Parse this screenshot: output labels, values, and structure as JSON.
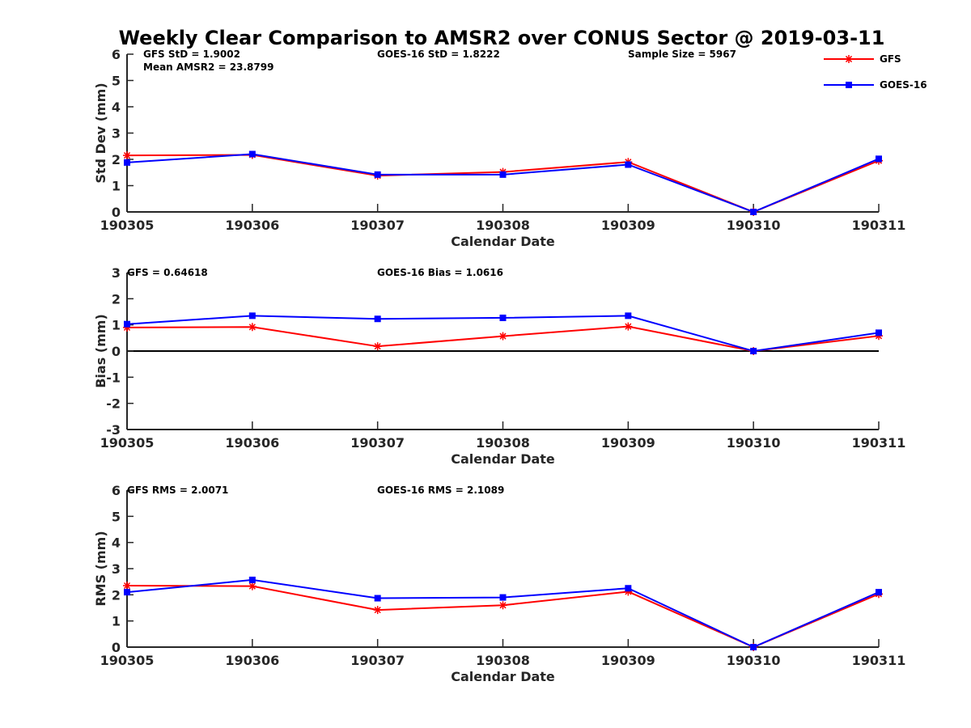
{
  "title": "Weekly Clear Comparison to AMSR2 over CONUS Sector @ 2019-03-11",
  "legend": {
    "placement": "top-right",
    "items": [
      {
        "name": "GFS",
        "color": "#ff0000",
        "marker": "asterisk"
      },
      {
        "name": "GOES-16",
        "color": "#0000ff",
        "marker": "square"
      }
    ]
  },
  "chart_data": [
    {
      "type": "line",
      "categories": [
        "190305",
        "190306",
        "190307",
        "190308",
        "190309",
        "190310",
        "190311"
      ],
      "xlabel": "Calendar Date",
      "ylabel": "Std Dev (mm)",
      "ylim": [
        0,
        6
      ],
      "yticks": [
        "0",
        "1",
        "2",
        "3",
        "4",
        "5",
        "6"
      ],
      "zero_line": false,
      "grid": false,
      "series": [
        {
          "name": "GFS",
          "color": "#ff0000",
          "marker": "asterisk",
          "values": [
            2.15,
            2.17,
            1.38,
            1.52,
            1.9,
            0.0,
            1.95
          ]
        },
        {
          "name": "GOES-16",
          "color": "#0000ff",
          "marker": "square",
          "values": [
            1.88,
            2.2,
            1.42,
            1.42,
            1.8,
            0.0,
            2.02
          ]
        }
      ],
      "annotations": [
        {
          "text": "GFS StD = 1.9002"
        },
        {
          "text": "Mean AMSR2 = 23.8799"
        },
        {
          "text": "GOES-16 StD = 1.8222"
        },
        {
          "text": "Sample Size = 5967"
        }
      ]
    },
    {
      "type": "line",
      "categories": [
        "190305",
        "190306",
        "190307",
        "190308",
        "190309",
        "190310",
        "190311"
      ],
      "xlabel": "Calendar Date",
      "ylabel": "Bias (mm)",
      "ylim": [
        -3,
        3
      ],
      "yticks": [
        "-3",
        "-2",
        "-1",
        "0",
        "1",
        "2",
        "3"
      ],
      "zero_line": true,
      "grid": false,
      "series": [
        {
          "name": "GFS",
          "color": "#ff0000",
          "marker": "asterisk",
          "values": [
            0.9,
            0.92,
            0.18,
            0.57,
            0.94,
            0.0,
            0.58
          ]
        },
        {
          "name": "GOES-16",
          "color": "#0000ff",
          "marker": "square",
          "values": [
            1.03,
            1.35,
            1.23,
            1.27,
            1.35,
            0.0,
            0.7
          ]
        }
      ],
      "annotations": [
        {
          "text": "GFS = 0.64618"
        },
        {
          "text": "GOES-16 Bias  = 1.0616"
        }
      ]
    },
    {
      "type": "line",
      "categories": [
        "190305",
        "190306",
        "190307",
        "190308",
        "190309",
        "190310",
        "190311"
      ],
      "xlabel": "Calendar Date",
      "ylabel": "RMS (mm)",
      "ylim": [
        0,
        6
      ],
      "yticks": [
        "0",
        "1",
        "2",
        "3",
        "4",
        "5",
        "6"
      ],
      "zero_line": false,
      "grid": false,
      "series": [
        {
          "name": "GFS",
          "color": "#ff0000",
          "marker": "asterisk",
          "values": [
            2.35,
            2.33,
            1.42,
            1.6,
            2.12,
            0.0,
            2.03
          ]
        },
        {
          "name": "GOES-16",
          "color": "#0000ff",
          "marker": "square",
          "values": [
            2.1,
            2.57,
            1.87,
            1.9,
            2.25,
            0.0,
            2.1
          ]
        }
      ],
      "annotations": [
        {
          "text": "GFS RMS = 2.0071"
        },
        {
          "text": "GOES-16 RMS = 2.1089"
        }
      ]
    }
  ]
}
